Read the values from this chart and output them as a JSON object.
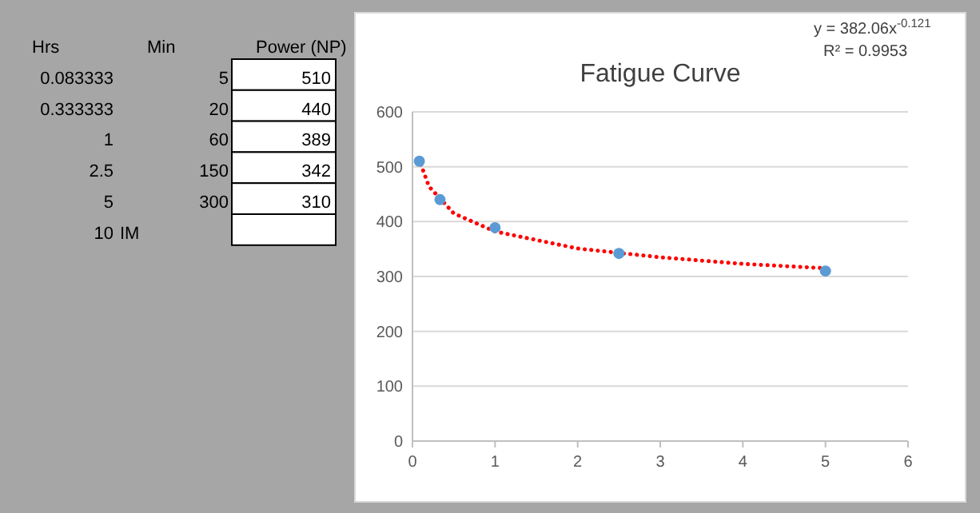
{
  "chart_data": [
    {
      "type": "other",
      "annotations": [
        "Hrs",
        "Min",
        "Power (NP)",
        "0.083333",
        "5",
        "510",
        "0.333333",
        "20",
        "440",
        "1",
        "60",
        "389",
        "2.5",
        "150",
        "342",
        "5",
        "300",
        "310",
        "10",
        "IM"
      ]
    },
    {
      "type": "scatter",
      "title": "Fatigue Curve",
      "annotations": [
        "y = 382.06x$^{-0.121}$",
        "R² = 0.9953"
      ],
      "xlim": [
        0,
        6
      ],
      "xticks": [
        0,
        1,
        2,
        3,
        4,
        5,
        6
      ],
      "ylim": [
        0,
        600
      ],
      "yticks": [
        0,
        100,
        200,
        300,
        400,
        500,
        600
      ],
      "grid": "y",
      "marker": "circle",
      "series": [
        {
          "type": "line",
          "color": "#ff0000",
          "line_style": "dotted",
          "marker": "none",
          "x": [
            0.083333,
            0.1,
            0.2,
            0.5,
            1,
            2,
            3,
            4,
            5
          ],
          "values": [
            516,
            505,
            464,
            415,
            382,
            351,
            335,
            323,
            315
          ]
        },
        {
          "type": "scatter",
          "color": "#5b9bd5",
          "x": [
            0.083333,
            0.333333,
            1,
            2.5,
            5
          ],
          "values": [
            510,
            440,
            389,
            342,
            310
          ]
        }
      ]
    }
  ]
}
